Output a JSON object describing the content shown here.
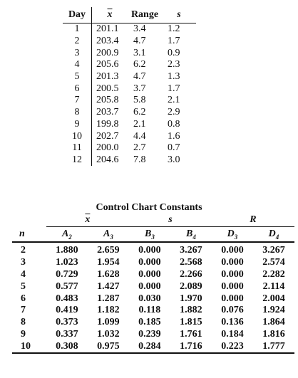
{
  "daily_table": {
    "headers": {
      "day": "Day",
      "xbar": "x",
      "range": "Range",
      "s": "s"
    },
    "rows": [
      {
        "day": "1",
        "xbar": "201.1",
        "range": "3.4",
        "s": "1.2"
      },
      {
        "day": "2",
        "xbar": "203.4",
        "range": "4.7",
        "s": "1.7"
      },
      {
        "day": "3",
        "xbar": "200.9",
        "range": "3.1",
        "s": "0.9"
      },
      {
        "day": "4",
        "xbar": "205.6",
        "range": "6.2",
        "s": "2.3"
      },
      {
        "day": "5",
        "xbar": "201.3",
        "range": "4.7",
        "s": "1.3"
      },
      {
        "day": "6",
        "xbar": "200.5",
        "range": "3.7",
        "s": "1.7"
      },
      {
        "day": "7",
        "xbar": "205.8",
        "range": "5.8",
        "s": "2.1"
      },
      {
        "day": "8",
        "xbar": "203.7",
        "range": "6.2",
        "s": "2.9"
      },
      {
        "day": "9",
        "xbar": "199.8",
        "range": "2.1",
        "s": "0.8"
      },
      {
        "day": "10",
        "xbar": "202.7",
        "range": "4.4",
        "s": "1.6"
      },
      {
        "day": "11",
        "xbar": "200.0",
        "range": "2.7",
        "s": "0.7"
      },
      {
        "day": "12",
        "xbar": "204.6",
        "range": "7.8",
        "s": "3.0"
      }
    ]
  },
  "constants_table": {
    "title": "Control Chart Constants",
    "groups": {
      "xbar": "x",
      "s": "s",
      "r": "R"
    },
    "columns": [
      {
        "base": "n",
        "sub": ""
      },
      {
        "base": "A",
        "sub": "2"
      },
      {
        "base": "A",
        "sub": "3"
      },
      {
        "base": "B",
        "sub": "3"
      },
      {
        "base": "B",
        "sub": "4"
      },
      {
        "base": "D",
        "sub": "3"
      },
      {
        "base": "D",
        "sub": "4"
      }
    ],
    "rows": [
      [
        "2",
        "1.880",
        "2.659",
        "0.000",
        "3.267",
        "0.000",
        "3.267"
      ],
      [
        "3",
        "1.023",
        "1.954",
        "0.000",
        "2.568",
        "0.000",
        "2.574"
      ],
      [
        "4",
        "0.729",
        "1.628",
        "0.000",
        "2.266",
        "0.000",
        "2.282"
      ],
      [
        "5",
        "0.577",
        "1.427",
        "0.000",
        "2.089",
        "0.000",
        "2.114"
      ],
      [
        "6",
        "0.483",
        "1.287",
        "0.030",
        "1.970",
        "0.000",
        "2.004"
      ],
      [
        "7",
        "0.419",
        "1.182",
        "0.118",
        "1.882",
        "0.076",
        "1.924"
      ],
      [
        "8",
        "0.373",
        "1.099",
        "0.185",
        "1.815",
        "0.136",
        "1.864"
      ],
      [
        "9",
        "0.337",
        "1.032",
        "0.239",
        "1.761",
        "0.184",
        "1.816"
      ],
      [
        "10",
        "0.308",
        "0.975",
        "0.284",
        "1.716",
        "0.223",
        "1.777"
      ]
    ]
  }
}
